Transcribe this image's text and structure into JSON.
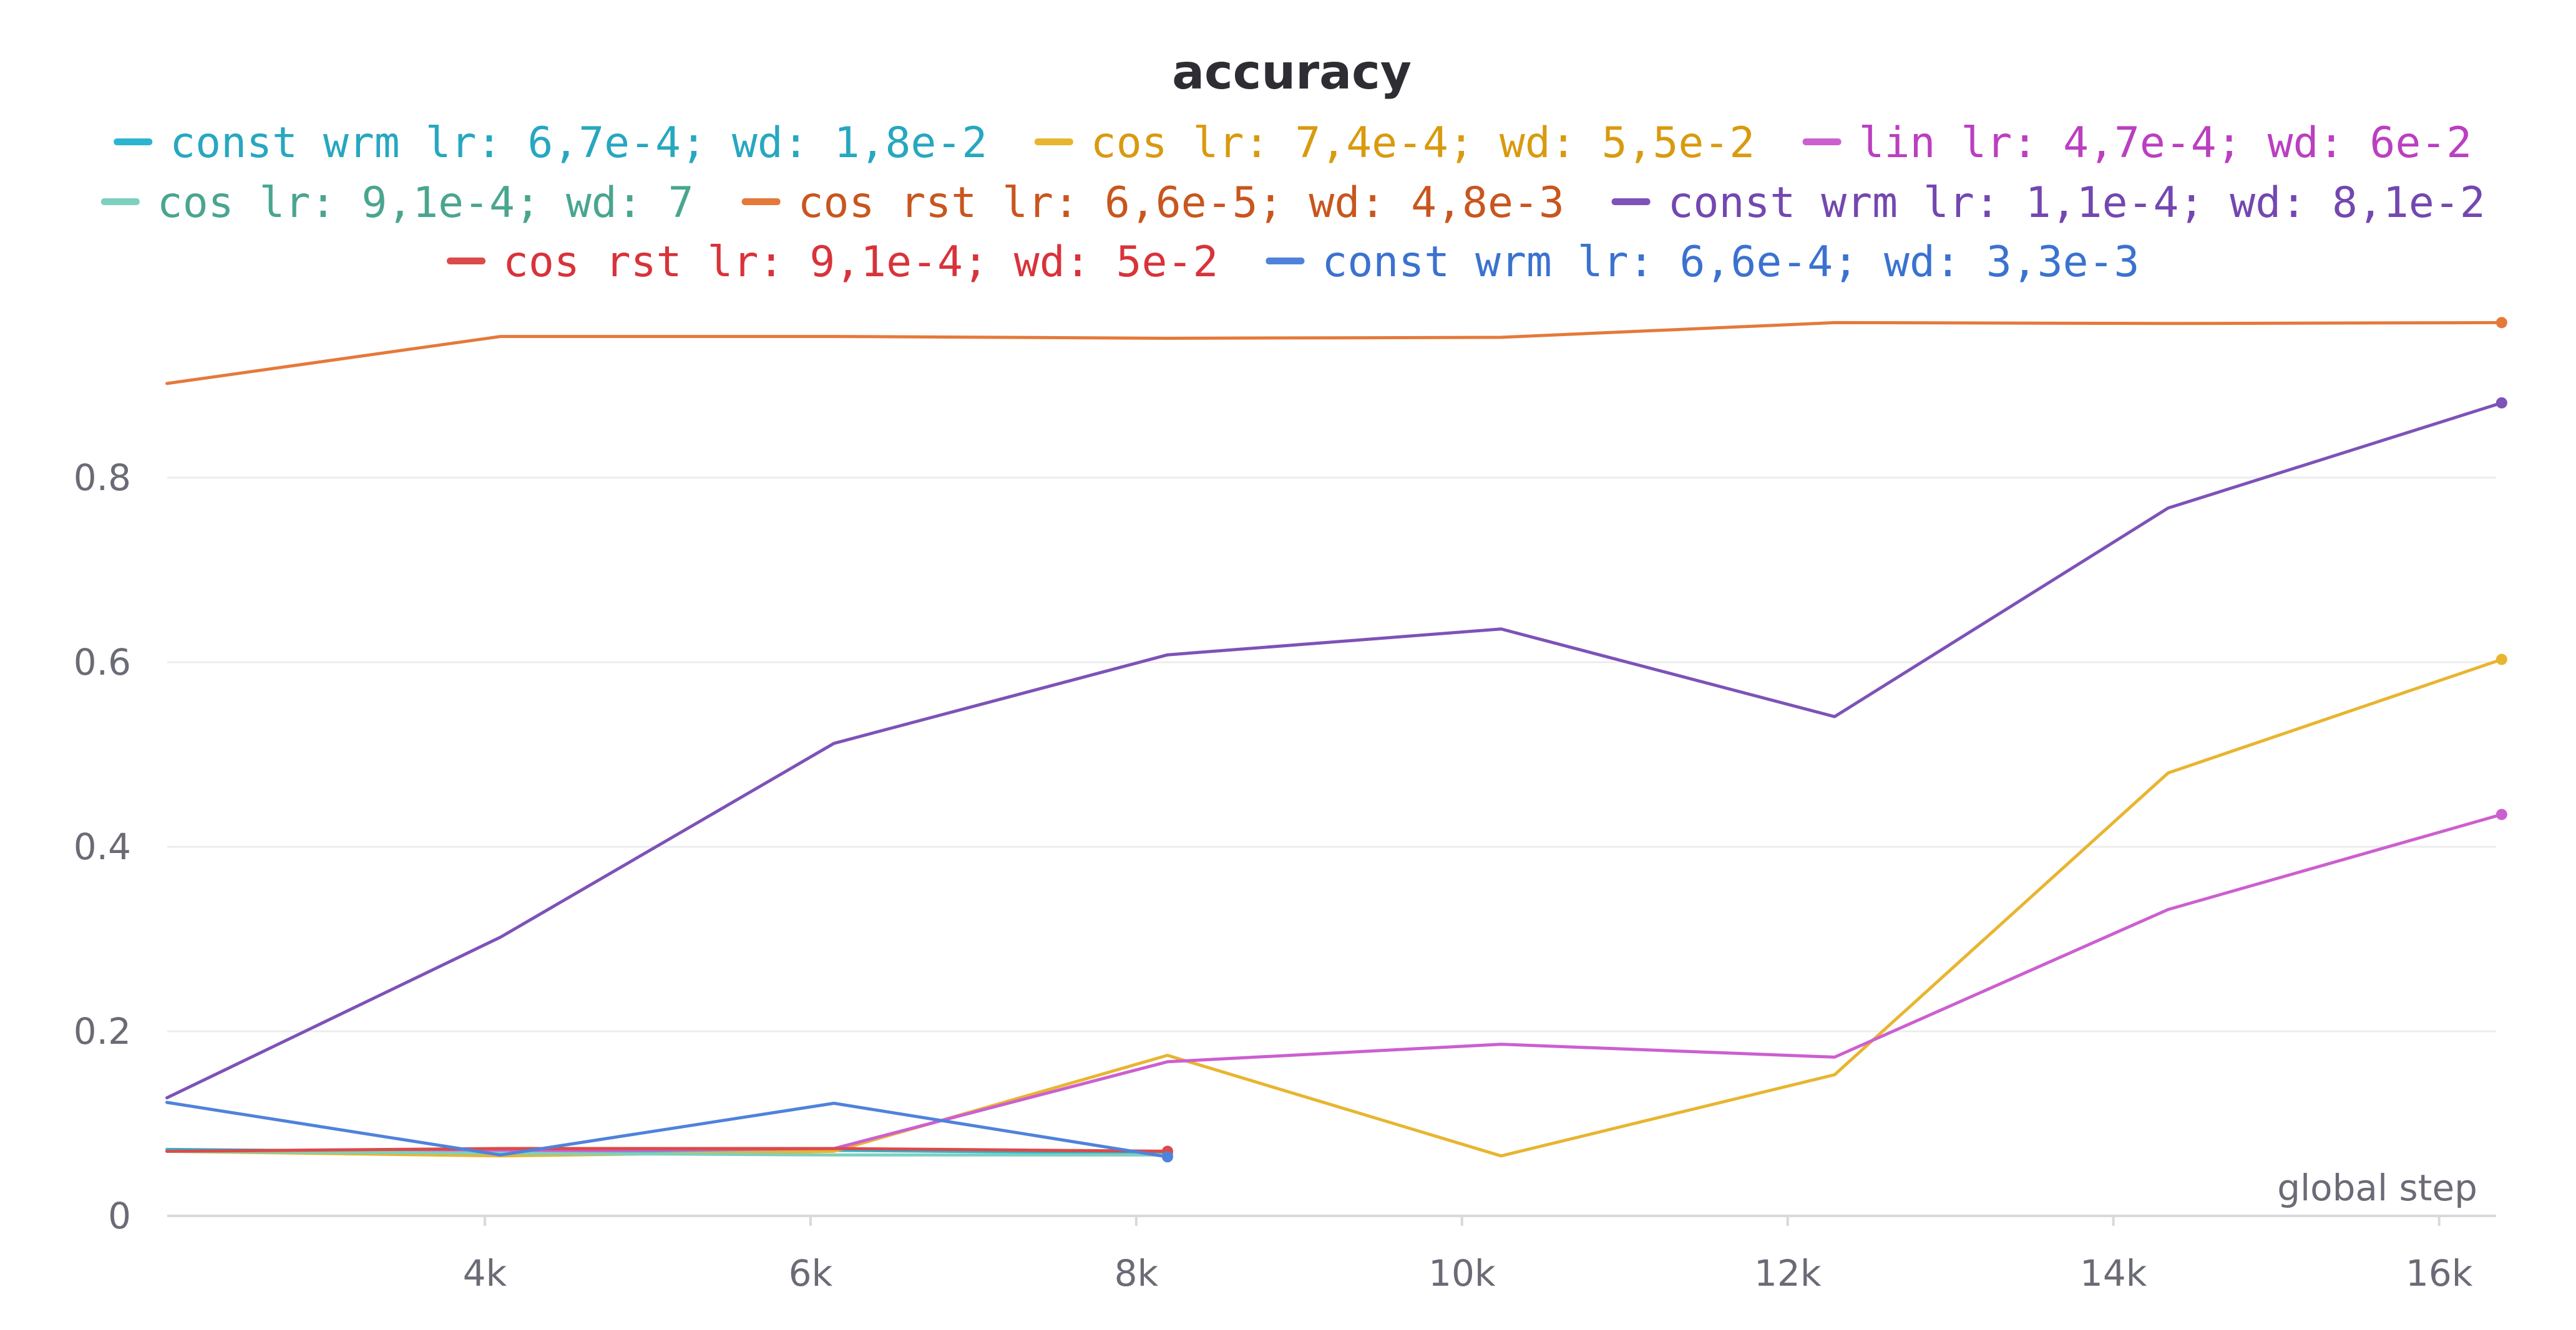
{
  "chart_data": {
    "type": "line",
    "title": "accuracy",
    "xlabel": "global step",
    "ylabel": "",
    "xlim": [
      2050,
      16350
    ],
    "ylim": [
      0,
      1.0
    ],
    "x_ticks": [
      {
        "value": 4000,
        "label": "4k"
      },
      {
        "value": 6000,
        "label": "6k"
      },
      {
        "value": 8000,
        "label": "8k"
      },
      {
        "value": 10000,
        "label": "10k"
      },
      {
        "value": 12000,
        "label": "12k"
      },
      {
        "value": 14000,
        "label": "14k"
      },
      {
        "value": 16000,
        "label": "16k"
      }
    ],
    "y_ticks": [
      {
        "value": 0,
        "label": "0"
      },
      {
        "value": 0.2,
        "label": "0.2"
      },
      {
        "value": 0.4,
        "label": "0.4"
      },
      {
        "value": 0.6,
        "label": "0.6"
      },
      {
        "value": 0.8,
        "label": "0.8"
      }
    ],
    "grid": true,
    "legend_position": "top",
    "series": [
      {
        "name": "const wrm lr: 6,7e-4; wd: 1,8e-2",
        "color": "#2cb5d0",
        "x": [
          2048,
          4096,
          6144,
          8192
        ],
        "y": [
          0.072,
          0.069,
          0.071,
          0.068
        ]
      },
      {
        "name": "cos lr: 7,4e-4; wd: 5,5e-2",
        "color": "#e8b530",
        "x": [
          2048,
          4096,
          6144,
          8192,
          10240,
          12288,
          14336,
          16384
        ],
        "y": [
          0.07,
          0.065,
          0.07,
          0.174,
          0.065,
          0.153,
          0.48,
          0.603
        ]
      },
      {
        "name": "lin lr: 4,7e-4; wd: 6e-2",
        "color": "#cc5fd0",
        "x": [
          2048,
          4096,
          6144,
          8192,
          10240,
          12288,
          14336,
          16384
        ],
        "y": [
          0.07,
          0.07,
          0.073,
          0.167,
          0.186,
          0.172,
          0.332,
          0.435
        ]
      },
      {
        "name": "cos lr: 9,1e-4; wd: 7",
        "color": "#7dd0be",
        "x": [
          2048,
          4096,
          6144,
          8192
        ],
        "y": [
          0.07,
          0.068,
          0.066,
          0.066
        ]
      },
      {
        "name": "cos rst lr: 6,6e-5; wd: 4,8e-3",
        "color": "#e5793a",
        "x": [
          2048,
          4096,
          6144,
          8192,
          10240,
          12288,
          14336,
          16384
        ],
        "y": [
          0.902,
          0.953,
          0.953,
          0.951,
          0.952,
          0.968,
          0.967,
          0.968
        ]
      },
      {
        "name": "const wrm lr: 1,1e-4; wd: 8,1e-2",
        "color": "#7e52b8",
        "x": [
          2048,
          4096,
          6144,
          8192,
          10240,
          12288,
          14336,
          16384
        ],
        "y": [
          0.128,
          0.302,
          0.512,
          0.608,
          0.636,
          0.541,
          0.767,
          0.881
        ]
      },
      {
        "name": "cos rst lr: 9,1e-4; wd: 5e-2",
        "color": "#dc4a4a",
        "x": [
          2048,
          4096,
          6144,
          8192
        ],
        "y": [
          0.07,
          0.073,
          0.073,
          0.07
        ]
      },
      {
        "name": "const wrm lr: 6,6e-4; wd: 3,3e-3",
        "color": "#4f82db",
        "x": [
          2048,
          4096,
          6144,
          8192
        ],
        "y": [
          0.123,
          0.066,
          0.122,
          0.064
        ]
      }
    ]
  },
  "legend_colors": {
    "text": [
      "#27a7c0",
      "#d99a0f",
      "#bb3fc0",
      "#4aa58f",
      "#c8561e",
      "#7447b0",
      "#d8333a",
      "#3b72cf"
    ]
  }
}
